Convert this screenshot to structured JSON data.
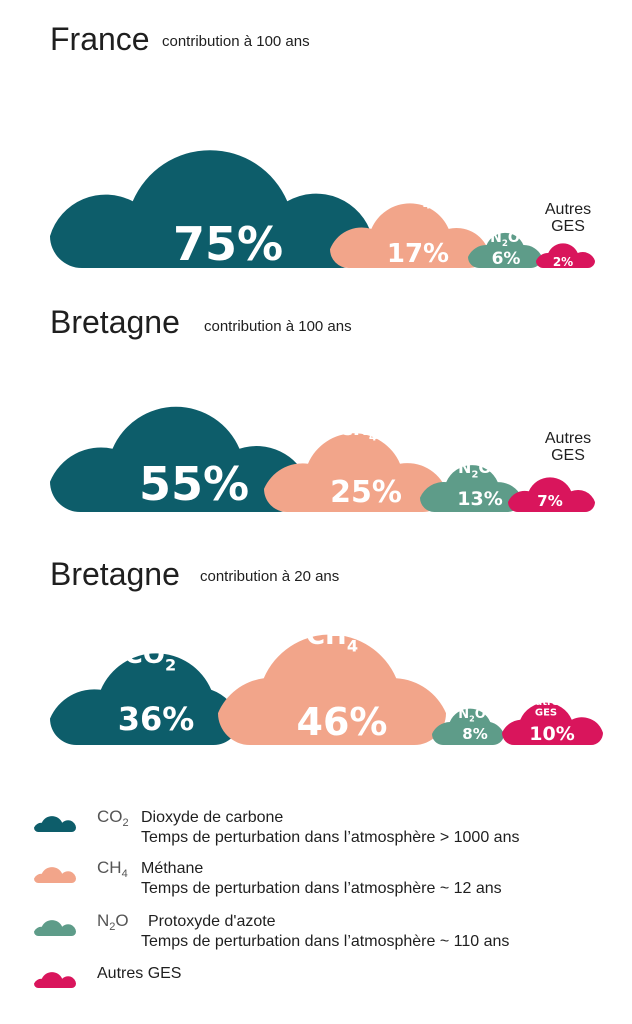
{
  "chart_data": [
    {
      "type": "bar",
      "title": "France",
      "subtitle": "contribution à 100 ans",
      "categories": [
        "CO2",
        "CH4",
        "N2O",
        "Autres GES"
      ],
      "values": [
        75,
        17,
        6,
        2
      ],
      "value_labels": [
        "75%",
        "17%",
        "6%",
        "2%"
      ]
    },
    {
      "type": "bar",
      "title": "Bretagne",
      "subtitle": "contribution à 100 ans",
      "categories": [
        "CO2",
        "CH4",
        "N2O",
        "Autres GES"
      ],
      "values": [
        55,
        25,
        13,
        7
      ],
      "value_labels": [
        "55%",
        "25%",
        "13%",
        "7%"
      ]
    },
    {
      "type": "bar",
      "title": "Bretagne",
      "subtitle": "contribution à 20 ans",
      "categories": [
        "CO2",
        "CH4",
        "N2O",
        "Autres GES"
      ],
      "values": [
        36,
        46,
        8,
        10
      ],
      "value_labels": [
        "36%",
        "46%",
        "8%",
        "10%"
      ]
    }
  ],
  "gases": [
    {
      "key": "co2",
      "formula": "CO",
      "sub": "2",
      "color": "#0d5d6a"
    },
    {
      "key": "ch4",
      "formula": "CH",
      "sub": "4",
      "color": "#f2a58a"
    },
    {
      "key": "n2o",
      "formula": "N",
      "sub": "2",
      "suffix": "O",
      "color": "#5e9c89"
    },
    {
      "key": "autres",
      "label_line1": "Autres",
      "label_line2": "GES",
      "color": "#d9155c"
    }
  ],
  "legend": [
    {
      "gas": "co2",
      "formula": "CO",
      "sub": "2",
      "name": "Dioxyde de carbone",
      "detail": "Temps de perturbation dans l’atmosphère > 1000 ans"
    },
    {
      "gas": "ch4",
      "formula": "CH",
      "sub": "4",
      "name": "Méthane",
      "detail": "Temps de perturbation dans l’atmosphère ~ 12 ans"
    },
    {
      "gas": "n2o",
      "formula": "N",
      "sub": "2",
      "suffix": "O",
      "name": "Protoxyde d'azote",
      "detail": "Temps de perturbation dans l’atmosphère ~ 110 ans"
    },
    {
      "gas": "autres",
      "name": "Autres GES"
    }
  ]
}
